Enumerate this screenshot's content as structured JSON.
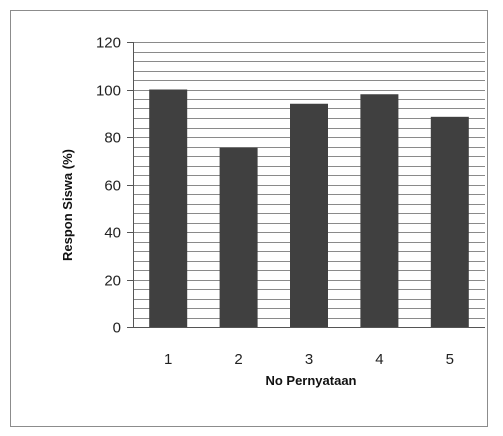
{
  "chart_data": {
    "type": "bar",
    "title": "",
    "xlabel": "No Pernyataan",
    "ylabel": "Respon Siswa (%)",
    "categories": [
      "1",
      "2",
      "3",
      "4",
      "5"
    ],
    "values": [
      100,
      75.5,
      94,
      98,
      88.5
    ],
    "ylim": [
      0,
      120
    ],
    "yticks": [
      0,
      20,
      40,
      60,
      80,
      100,
      120
    ],
    "minor_grid_step": 4,
    "grid": true,
    "legend": "none",
    "colors": {
      "bar": "#404040",
      "grid": "#8a8a8a",
      "axis": "#555555"
    }
  }
}
